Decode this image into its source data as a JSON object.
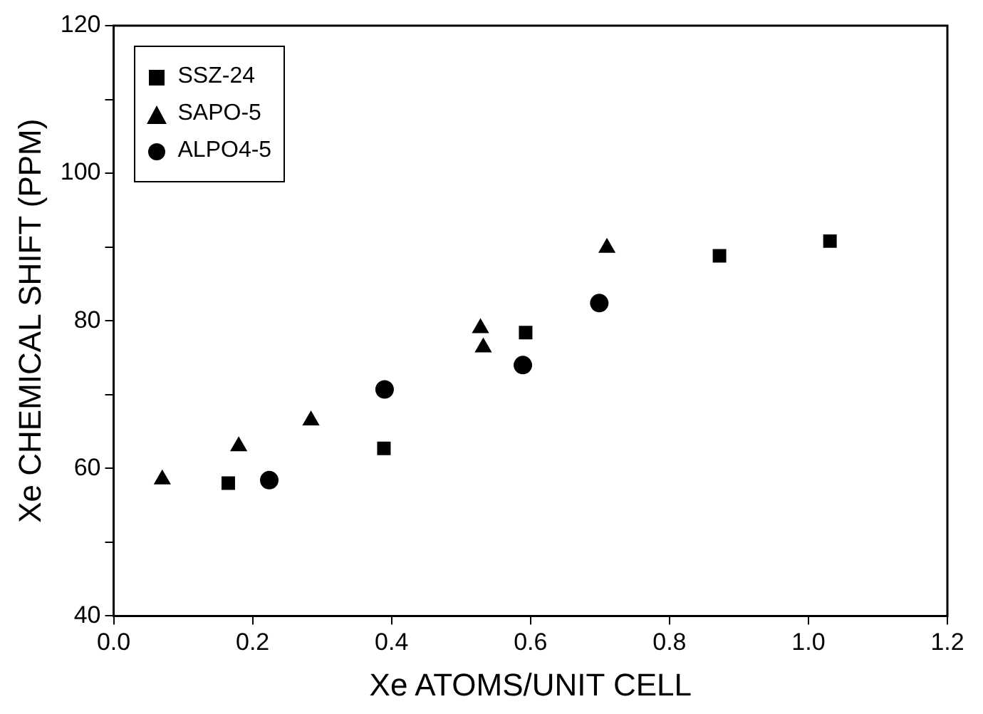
{
  "chart_data": {
    "type": "scatter",
    "xlabel": "Xe ATOMS/UNIT CELL",
    "ylabel": "Xe CHEMICAL SHIFT (PPM)",
    "xlim": [
      0,
      1.2
    ],
    "ylim": [
      40,
      120
    ],
    "xticks": [
      "0.0",
      0.2,
      0.4,
      0.6,
      0.8,
      "1.0",
      1.2
    ],
    "yticks": [
      40,
      {
        "value": 50,
        "label": null
      },
      60,
      {
        "value": 70,
        "label": null
      },
      80,
      {
        "value": 90,
        "label": null
      },
      100,
      {
        "value": 110,
        "label": null
      },
      120
    ],
    "grid": false,
    "legend": "top left",
    "series": [
      {
        "name": "SSZ-24",
        "color": "#000000",
        "marker": "square",
        "x": [
          0.165,
          0.389,
          0.593,
          0.872,
          1.031
        ],
        "values": [
          58.0,
          62.7,
          78.4,
          88.8,
          90.8
        ]
      },
      {
        "name": "SAPO-5",
        "color": "#000000",
        "marker": "triangle",
        "x": [
          0.07,
          0.18,
          0.284,
          0.528,
          0.532,
          0.71
        ],
        "values": [
          58.5,
          63,
          66.5,
          79.0,
          76.4,
          89.9
        ]
      },
      {
        "name": "ALPO4-5",
        "color": "#000000",
        "marker": "circle",
        "x": [
          0.224,
          0.39,
          0.589,
          0.699
        ],
        "values": [
          58.4,
          70.7,
          74.0,
          82.4
        ]
      }
    ]
  }
}
